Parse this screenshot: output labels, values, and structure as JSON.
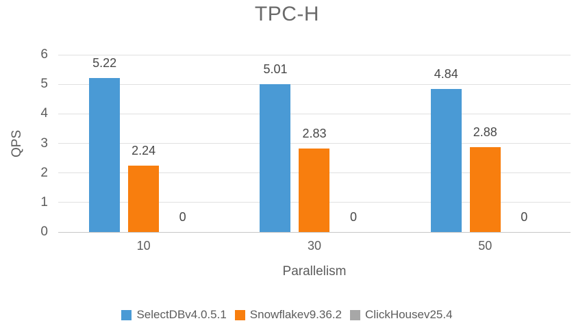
{
  "chart_data": {
    "type": "bar",
    "title": "TPC-H",
    "xlabel": "Parallelism",
    "ylabel": "QPS",
    "categories": [
      "10",
      "30",
      "50"
    ],
    "series": [
      {
        "name": "SelectDBv4.0.5.1",
        "color": "#4A9AD5",
        "values": [
          5.22,
          5.01,
          4.84
        ],
        "labels": [
          "5.22",
          "5.01",
          "4.84"
        ]
      },
      {
        "name": "Snowflakev9.36.2",
        "color": "#F87E0E",
        "values": [
          2.24,
          2.83,
          2.88
        ],
        "labels": [
          "2.24",
          "2.83",
          "2.88"
        ]
      },
      {
        "name": "ClickHousev25.4",
        "color": "#A7A7A7",
        "values": [
          0,
          0,
          0
        ],
        "labels": [
          "0",
          "0",
          "0"
        ]
      }
    ],
    "ylim": [
      0,
      6
    ],
    "ytick_step": 1,
    "grid": true,
    "legend_position": "bottom",
    "colors": {
      "title_text": "#6a6a6a",
      "axis_text": "#5c5c5c",
      "value_label_text": "#474747",
      "gridline": "#e0e0e0",
      "baseline": "#c6c6c6",
      "background": "#ffffff"
    }
  }
}
